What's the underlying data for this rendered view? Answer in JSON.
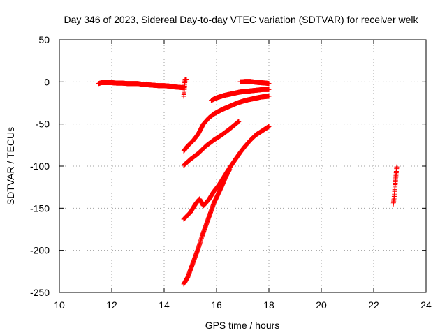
{
  "chart_data": {
    "type": "scatter",
    "title": "Day 346 of 2023, Sidereal Day-to-day VTEC variation (SDTVAR) for receiver welk",
    "xlabel": "GPS time / hours",
    "ylabel": "SDTVAR / TECUs",
    "xlim": [
      10,
      24
    ],
    "ylim": [
      -250,
      50
    ],
    "xticks": [
      10,
      12,
      14,
      16,
      18,
      20,
      22,
      24
    ],
    "yticks": [
      -250,
      -200,
      -150,
      -100,
      -50,
      0,
      50
    ],
    "xtick_labels": [
      "10",
      "12",
      "14",
      "16",
      "18",
      "20",
      "22",
      "24"
    ],
    "ytick_labels": [
      "-250",
      "-200",
      "-150",
      "-100",
      "-50",
      "0",
      "50"
    ],
    "grid": true,
    "marker": "+",
    "color": "#ff0000",
    "series": [
      {
        "points": [
          [
            11.5,
            -2
          ],
          [
            11.6,
            -1
          ],
          [
            11.8,
            -1
          ],
          [
            12.0,
            -1
          ],
          [
            12.2,
            -1.5
          ],
          [
            12.4,
            -1.5
          ],
          [
            12.6,
            -2
          ],
          [
            12.8,
            -2
          ],
          [
            13.0,
            -2
          ],
          [
            13.2,
            -3
          ],
          [
            13.4,
            -3.5
          ],
          [
            13.6,
            -4
          ],
          [
            13.8,
            -4.5
          ],
          [
            14.0,
            -4.5
          ],
          [
            14.2,
            -5
          ],
          [
            14.4,
            -6
          ],
          [
            14.6,
            -6.5
          ],
          [
            14.75,
            -7
          ]
        ]
      },
      {
        "points": [
          [
            14.75,
            -17
          ],
          [
            14.8,
            3
          ],
          [
            14.85,
            3
          ]
        ]
      },
      {
        "points": [
          [
            14.75,
            -82
          ],
          [
            14.9,
            -76
          ],
          [
            15.1,
            -70
          ],
          [
            15.3,
            -62
          ],
          [
            15.5,
            -50
          ],
          [
            15.7,
            -43
          ],
          [
            15.9,
            -38
          ],
          [
            16.2,
            -33
          ],
          [
            16.5,
            -29
          ],
          [
            16.8,
            -25
          ],
          [
            17.1,
            -22
          ],
          [
            17.4,
            -20
          ],
          [
            17.7,
            -18
          ],
          [
            18.0,
            -17
          ]
        ]
      },
      {
        "points": [
          [
            15.8,
            -22
          ],
          [
            16.0,
            -19
          ],
          [
            16.3,
            -16
          ],
          [
            16.6,
            -14
          ],
          [
            16.9,
            -12
          ],
          [
            17.2,
            -11
          ],
          [
            17.5,
            -10
          ],
          [
            17.8,
            -9
          ],
          [
            18.0,
            -9
          ]
        ]
      },
      {
        "points": [
          [
            16.9,
            0
          ],
          [
            17.1,
            0.5
          ],
          [
            17.3,
            0.5
          ],
          [
            17.5,
            -0.5
          ],
          [
            17.7,
            -1
          ],
          [
            17.9,
            -1.5
          ],
          [
            18.0,
            -2
          ]
        ]
      },
      {
        "points": [
          [
            14.75,
            -99
          ],
          [
            15.0,
            -92
          ],
          [
            15.3,
            -85
          ],
          [
            15.6,
            -76
          ],
          [
            15.9,
            -69
          ],
          [
            16.2,
            -63
          ],
          [
            16.5,
            -56
          ],
          [
            16.85,
            -47
          ]
        ]
      },
      {
        "points": [
          [
            14.75,
            -163
          ],
          [
            15.0,
            -155
          ],
          [
            15.2,
            -145
          ],
          [
            15.35,
            -139
          ],
          [
            15.5,
            -147
          ],
          [
            15.7,
            -140
          ],
          [
            15.9,
            -130
          ],
          [
            16.1,
            -122
          ],
          [
            16.3,
            -112
          ],
          [
            16.5,
            -102
          ],
          [
            16.7,
            -93
          ],
          [
            16.9,
            -84
          ],
          [
            17.1,
            -76
          ],
          [
            17.3,
            -69
          ],
          [
            17.5,
            -63
          ],
          [
            17.7,
            -59
          ],
          [
            17.9,
            -55
          ],
          [
            18.0,
            -53
          ]
        ]
      },
      {
        "points": [
          [
            14.75,
            -240
          ],
          [
            14.9,
            -232
          ],
          [
            15.1,
            -215
          ],
          [
            15.3,
            -198
          ],
          [
            15.45,
            -183
          ],
          [
            15.6,
            -170
          ],
          [
            15.75,
            -157
          ],
          [
            15.9,
            -144
          ],
          [
            16.05,
            -134
          ],
          [
            16.2,
            -124
          ],
          [
            16.35,
            -113
          ],
          [
            16.5,
            -104
          ]
        ]
      },
      {
        "points": [
          [
            22.75,
            -145
          ],
          [
            22.78,
            -138
          ],
          [
            22.8,
            -130
          ],
          [
            22.82,
            -122
          ],
          [
            22.84,
            -115
          ],
          [
            22.86,
            -108
          ],
          [
            22.88,
            -101
          ]
        ]
      }
    ]
  }
}
